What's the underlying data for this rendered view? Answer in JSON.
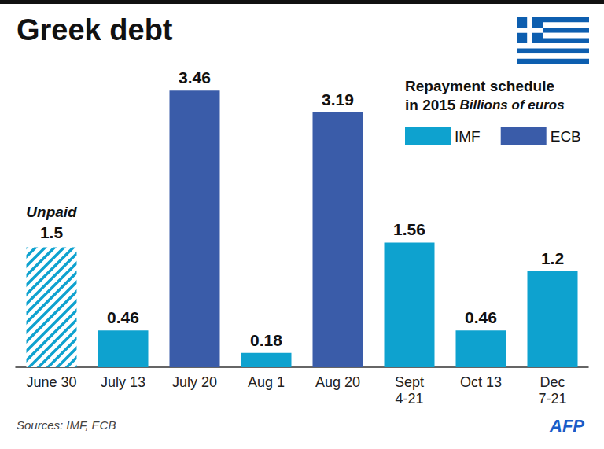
{
  "chart_data": {
    "type": "bar",
    "title": "Greek debt",
    "subtitle": "Repayment schedule\nin 2015",
    "units": "Billions of euros",
    "source": "Sources: IMF, ECB",
    "credit": "AFP",
    "categories": [
      "June 30",
      "July 13",
      "July 20",
      "Aug 1",
      "Aug 20",
      "Sept\n4-21",
      "Oct 13",
      "Dec\n7-21"
    ],
    "series": [
      {
        "name": "IMF",
        "color": "#0ea2cf",
        "values": [
          1.5,
          0.46,
          null,
          0.18,
          null,
          1.56,
          0.46,
          1.2
        ]
      },
      {
        "name": "ECB",
        "color": "#3a5ca9",
        "values": [
          null,
          null,
          3.46,
          null,
          3.19,
          null,
          null,
          null
        ]
      }
    ],
    "annotations": [
      {
        "text": "Unpaid",
        "category": "June 30"
      }
    ],
    "ylim": [
      0,
      3.6
    ],
    "data_labels": true,
    "tick_labels": "x",
    "grid": false,
    "legend": "top-right"
  }
}
